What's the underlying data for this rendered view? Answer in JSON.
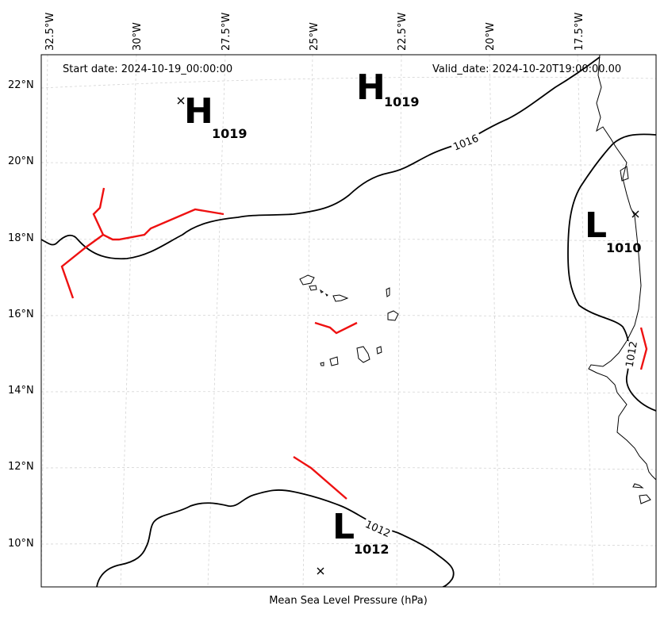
{
  "header": {
    "start_date": "Start date: 2024-10-19_00:00:00",
    "valid_date": "Valid_date: 2024-10-20T19:00:00.00"
  },
  "footer": {
    "title": "Mean Sea Level Pressure (hPa)"
  },
  "axes": {
    "lon_ticks": [
      "32.5°W",
      "30°W",
      "27.5°W",
      "25°W",
      "22.5°W",
      "20°W",
      "17.5°W"
    ],
    "lat_ticks": [
      "22°N",
      "20°N",
      "18°N",
      "16°N",
      "14°N",
      "12°N",
      "10°N"
    ]
  },
  "pressure_centers": [
    {
      "symbol": "H",
      "value": "1019"
    },
    {
      "symbol": "H",
      "value": "1019"
    },
    {
      "symbol": "L",
      "value": "1010"
    },
    {
      "symbol": "L",
      "value": "1012"
    }
  ],
  "isobar_labels": [
    "1016",
    "1012",
    "1012"
  ],
  "colors": {
    "isobar": "#000000",
    "front": "#ee1111",
    "grid": "#d4d4d4"
  }
}
